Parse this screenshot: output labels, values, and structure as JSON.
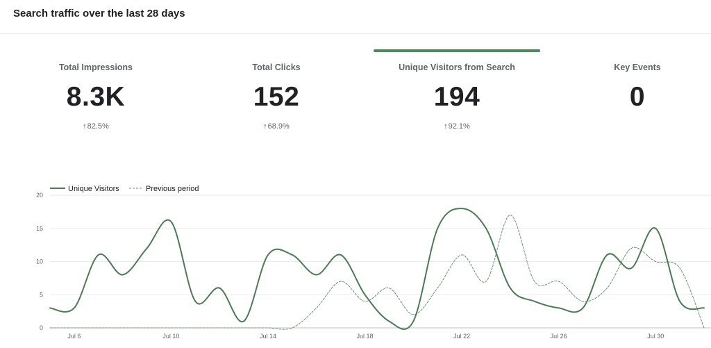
{
  "header": {
    "title": "Search traffic over the last 28 days"
  },
  "metrics": [
    {
      "label": "Total Impressions",
      "value": "8.3K",
      "delta": "82.5%",
      "arrow": "↑"
    },
    {
      "label": "Total Clicks",
      "value": "152",
      "delta": "68.9%",
      "arrow": "↑"
    },
    {
      "label": "Unique Visitors from Search",
      "value": "194",
      "delta": "92.1%",
      "arrow": "↑",
      "active": true
    },
    {
      "label": "Key Events",
      "value": "0",
      "delta": "",
      "arrow": ""
    }
  ],
  "colors": {
    "accent": "#4d8a5e",
    "line": "#4d7a55",
    "previous": "#6f8f76",
    "grid": "#e8eaed",
    "up": "#188038"
  },
  "chart_data": {
    "type": "line",
    "legend": [
      "Unique Visitors",
      "Previous period"
    ],
    "x": [
      "Jul 5",
      "Jul 6",
      "Jul 7",
      "Jul 8",
      "Jul 9",
      "Jul 10",
      "Jul 11",
      "Jul 12",
      "Jul 13",
      "Jul 14",
      "Jul 15",
      "Jul 16",
      "Jul 17",
      "Jul 18",
      "Jul 19",
      "Jul 20",
      "Jul 21",
      "Jul 22",
      "Jul 23",
      "Jul 24",
      "Jul 25",
      "Jul 26",
      "Jul 27",
      "Jul 28",
      "Jul 29",
      "Jul 30",
      "Jul 31",
      "Aug 1"
    ],
    "xticks": [
      "Jul 6",
      "Jul 10",
      "Jul 14",
      "Jul 18",
      "Jul 22",
      "Jul 26",
      "Jul 30"
    ],
    "series": [
      {
        "name": "Unique Visitors",
        "style": "solid",
        "values": [
          3,
          3,
          11,
          8,
          12,
          16,
          4,
          6,
          1,
          11,
          11,
          8,
          11,
          5,
          1,
          1,
          15,
          18,
          15,
          6,
          4,
          3,
          3,
          11,
          9,
          15,
          4,
          3
        ]
      },
      {
        "name": "Previous period",
        "style": "dashed",
        "values": [
          0,
          0,
          0,
          0,
          0,
          0,
          0,
          0,
          0,
          0,
          0,
          3,
          7,
          4,
          6,
          2,
          6,
          11,
          7,
          17,
          7,
          7,
          4,
          6,
          12,
          10,
          9,
          0
        ]
      }
    ],
    "yticks": [
      0,
      5,
      10,
      15,
      20
    ],
    "ylim": [
      0,
      20
    ],
    "grid": true,
    "legend_position": "top-left"
  }
}
